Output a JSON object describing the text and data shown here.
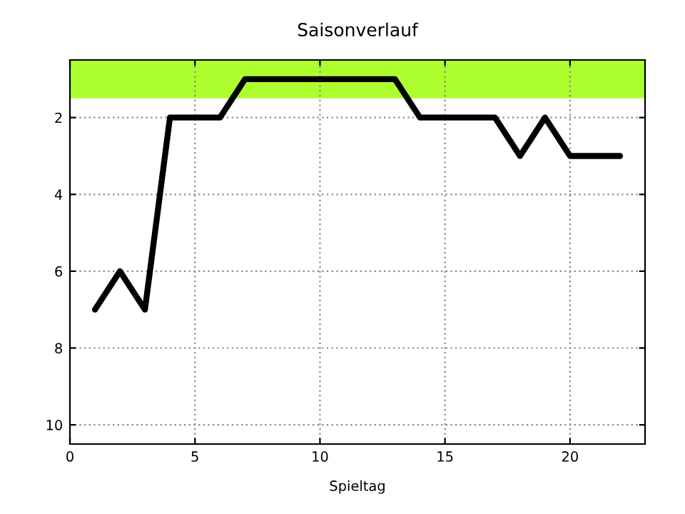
{
  "chart_data": {
    "type": "line",
    "title": "Saisonverlauf",
    "xlabel": "Spieltag",
    "x": [
      1,
      2,
      3,
      4,
      5,
      6,
      7,
      8,
      9,
      10,
      11,
      12,
      13,
      14,
      15,
      16,
      17,
      18,
      19,
      20,
      21,
      22
    ],
    "series": [
      {
        "color": "#000000",
        "values": [
          7,
          6,
          7,
          2,
          2,
          2,
          1,
          1,
          1,
          1,
          1,
          1,
          1,
          2,
          2,
          2,
          2,
          3,
          2,
          3,
          3,
          3
        ]
      }
    ],
    "xlim": [
      0,
      23
    ],
    "xticks": [
      0,
      5,
      10,
      15,
      20
    ],
    "ylim": [
      10.5,
      0.5
    ],
    "yticks": [
      2,
      4,
      6,
      8,
      10
    ],
    "bands": [
      {
        "axis": "y",
        "from": 0.5,
        "to": 1.5,
        "color": "#adff2f"
      }
    ],
    "grid": true,
    "legend": false,
    "marker": "none",
    "line_style": "solid"
  }
}
